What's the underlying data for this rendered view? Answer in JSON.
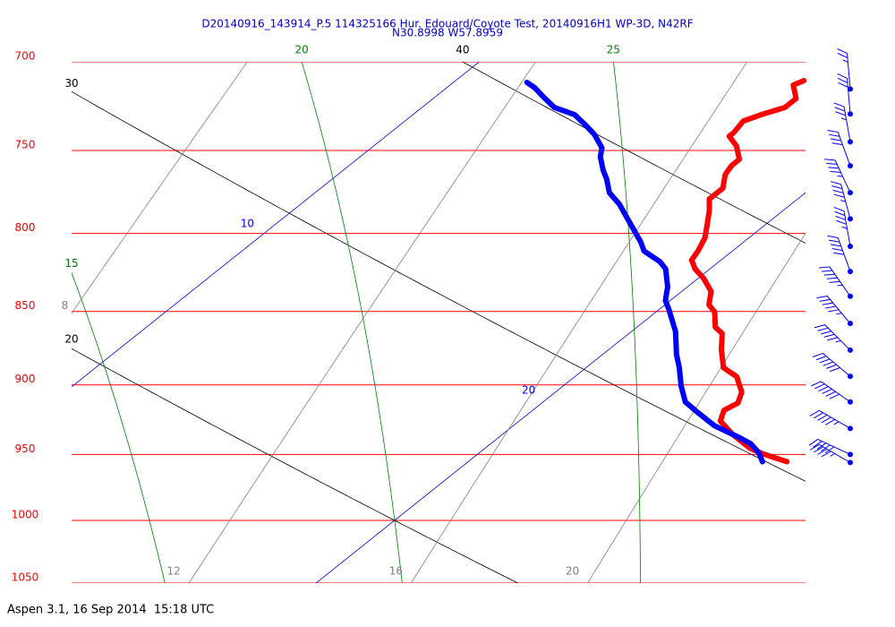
{
  "chart_data": {
    "type": "skewt",
    "title": "D20140916_143914_P.5 114325166 Hur. Edouard/Coyote Test, 20140916H1 WP-3D, N42RF",
    "subtitle": "N30.8998 W57.8959",
    "footer": "Aspen 3.1, 16 Sep 2014  15:18 UTC",
    "ylim": [
      700,
      1050
    ],
    "yticks": [
      700,
      750,
      800,
      850,
      900,
      950,
      1000,
      1050
    ],
    "log_y": true,
    "isobar_color": "#ff0000",
    "isotherms": {
      "color": "#0000ff",
      "values": [
        10,
        20
      ]
    },
    "dry_adiabats": {
      "color": "#000000",
      "values": [
        20,
        30,
        40
      ]
    },
    "moist_adiabats": {
      "color": "#008000",
      "values": [
        15,
        20,
        25
      ]
    },
    "mixing_ratios": {
      "color": "#808080",
      "values": [
        8,
        12,
        16,
        20
      ]
    },
    "series": [
      {
        "color": "#ff0000",
        "x": [
          17.1,
          17.0,
          17.4,
          17.4,
          17.1,
          16.9,
          17.0,
          17.0,
          17.4,
          17.8,
          17.8,
          17.9,
          18.2,
          18.2,
          18.5,
          18.8,
          19.1,
          19.3,
          19.4,
          19.7,
          20.1,
          20.6,
          20.9,
          21.2,
          21.6,
          21.9,
          22.3,
          22.8,
          23.3,
          23.8,
          24.0,
          23.9,
          24.1,
          24.7,
          25.4,
          25.8,
          26.5
        ],
        "values": [
          710.3,
          712.8,
          720.3,
          725.3,
          729.4,
          733.0,
          739.6,
          741.7,
          747.4,
          755.2,
          758.9,
          764.2,
          772.3,
          778.8,
          786.0,
          794.2,
          802.6,
          811.0,
          816.7,
          822.4,
          828.2,
          836.9,
          845.7,
          850.4,
          860.5,
          864.7,
          875.7,
          888.0,
          894.2,
          905.1,
          912.8,
          917.9,
          925.6,
          935.4,
          945.4,
          949.5,
          955.4
        ]
      },
      {
        "color": "#0000ff",
        "x": [
          11.5,
          11.8,
          12.2,
          12.7,
          13.3,
          13.8,
          14.2,
          14.7,
          14.9,
          15.3,
          15.6,
          16.0,
          16.5,
          16.9,
          17.4,
          17.9,
          18.2,
          18.8,
          19.1,
          19.6,
          19.9,
          20.2,
          20.9,
          21.5,
          21.9,
          22.4,
          22.9,
          23.4,
          24.1,
          24.9,
          25.3,
          25.7,
          26.0
        ],
        "values": [
          711.3,
          714.3,
          719.3,
          725.3,
          729.4,
          735.5,
          740.6,
          748.4,
          753.7,
          761.6,
          766.9,
          775.0,
          782.0,
          788.6,
          796.9,
          805.3,
          811.0,
          817.8,
          822.4,
          834.0,
          842.8,
          848.7,
          863.4,
          878.8,
          888.0,
          900.6,
          912.0,
          919.2,
          929.0,
          937.5,
          942.1,
          948.8,
          955.4
        ]
      }
    ],
    "wind": {
      "color": "#0000ff",
      "pressure": [
        715,
        729,
        745,
        759,
        775,
        791,
        808,
        824,
        840,
        858,
        876,
        894,
        912,
        931,
        950,
        956
      ],
      "direction": [
        355,
        355,
        350,
        340,
        335,
        345,
        350,
        340,
        325,
        320,
        315,
        310,
        305,
        300,
        295,
        300
      ],
      "speed": [
        25,
        30,
        35,
        40,
        45,
        45,
        45,
        50,
        55,
        55,
        55,
        60,
        60,
        55,
        50,
        45
      ]
    }
  }
}
